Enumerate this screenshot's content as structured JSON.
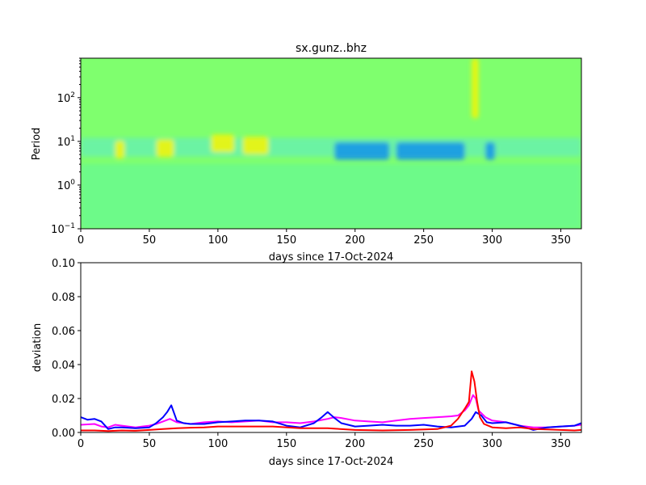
{
  "title": "sx.gunz..bhz",
  "colors": {
    "field_base": "#7fff6e",
    "band_yellow": "#f8f500",
    "band_cyan": "#1ad8ff",
    "band_blue": "#0a8cf0",
    "lower_band": "#5ef5a0"
  },
  "chart_data": [
    {
      "type": "heatmap",
      "title": "sx.gunz..bhz",
      "xlabel": "days since 17-Oct-2024",
      "ylabel": "Period",
      "xlim": [
        0,
        365
      ],
      "ylim": [
        0.1,
        800
      ],
      "yscale": "log",
      "x_ticks": [
        0,
        50,
        100,
        150,
        200,
        250,
        300,
        350
      ],
      "y_ticks": [
        {
          "value": 0.1,
          "base": "10",
          "exp": "−1"
        },
        {
          "value": 1,
          "base": "10",
          "exp": "0"
        },
        {
          "value": 10,
          "base": "10",
          "exp": "1"
        },
        {
          "value": 100,
          "base": "10",
          "exp": "2"
        }
      ],
      "features": [
        {
          "kind": "positive",
          "x_start": 25,
          "x_end": 32,
          "period": 6.5
        },
        {
          "kind": "positive",
          "x_start": 55,
          "x_end": 68,
          "period": 7
        },
        {
          "kind": "positive",
          "x_start": 95,
          "x_end": 112,
          "period": 9
        },
        {
          "kind": "positive",
          "x_start": 118,
          "x_end": 137,
          "period": 8
        },
        {
          "kind": "negative",
          "x_start": 185,
          "x_end": 225,
          "period": 6
        },
        {
          "kind": "negative",
          "x_start": 230,
          "x_end": 280,
          "period": 6
        },
        {
          "kind": "negative",
          "x_start": 295,
          "x_end": 302,
          "period": 6
        },
        {
          "kind": "positive",
          "x_start": 285,
          "x_end": 290,
          "period": 200
        }
      ]
    },
    {
      "type": "line",
      "xlabel": "days since 17-Oct-2024",
      "ylabel": "deviation",
      "xlim": [
        0,
        365
      ],
      "ylim": [
        0,
        0.1
      ],
      "x_ticks": [
        0,
        50,
        100,
        150,
        200,
        250,
        300,
        350
      ],
      "y_ticks": [
        "0.00",
        "0.02",
        "0.04",
        "0.06",
        "0.08",
        "0.10"
      ],
      "series": [
        {
          "color": "#ff00ff",
          "x": [
            0,
            10,
            15,
            20,
            25,
            30,
            40,
            45,
            50,
            55,
            60,
            65,
            70,
            80,
            90,
            100,
            110,
            120,
            130,
            140,
            150,
            160,
            170,
            180,
            185,
            190,
            200,
            210,
            220,
            230,
            240,
            250,
            260,
            270,
            275,
            280,
            283,
            286,
            288,
            290,
            295,
            300,
            310,
            320,
            330,
            340,
            350,
            360,
            365
          ],
          "y": [
            0.0045,
            0.005,
            0.0035,
            0.003,
            0.0045,
            0.004,
            0.003,
            0.0035,
            0.004,
            0.005,
            0.0065,
            0.008,
            0.006,
            0.005,
            0.006,
            0.0065,
            0.006,
            0.0065,
            0.007,
            0.006,
            0.006,
            0.0055,
            0.0065,
            0.008,
            0.009,
            0.0085,
            0.007,
            0.0065,
            0.006,
            0.007,
            0.008,
            0.0085,
            0.009,
            0.0095,
            0.01,
            0.013,
            0.016,
            0.022,
            0.02,
            0.013,
            0.009,
            0.007,
            0.006,
            0.004,
            0.003,
            0.003,
            0.0035,
            0.004,
            0.0045
          ]
        },
        {
          "color": "#0000ff",
          "x": [
            0,
            5,
            10,
            15,
            20,
            25,
            30,
            40,
            50,
            55,
            60,
            63,
            66,
            70,
            75,
            80,
            90,
            100,
            110,
            120,
            130,
            140,
            150,
            160,
            170,
            175,
            180,
            185,
            190,
            200,
            210,
            220,
            230,
            240,
            250,
            260,
            270,
            280,
            285,
            288,
            292,
            296,
            300,
            310,
            320,
            330,
            340,
            350,
            360,
            365
          ],
          "y": [
            0.009,
            0.0075,
            0.008,
            0.0065,
            0.002,
            0.003,
            0.003,
            0.0025,
            0.003,
            0.0055,
            0.009,
            0.012,
            0.016,
            0.007,
            0.0055,
            0.005,
            0.005,
            0.006,
            0.0065,
            0.007,
            0.007,
            0.0065,
            0.004,
            0.003,
            0.0055,
            0.0085,
            0.012,
            0.0085,
            0.0055,
            0.0035,
            0.004,
            0.0045,
            0.004,
            0.004,
            0.0045,
            0.0035,
            0.003,
            0.004,
            0.008,
            0.012,
            0.01,
            0.006,
            0.0055,
            0.006,
            0.004,
            0.0015,
            0.003,
            0.0035,
            0.004,
            0.0055
          ]
        },
        {
          "color": "#ff0000",
          "x": [
            0,
            10,
            20,
            30,
            40,
            50,
            60,
            70,
            80,
            90,
            100,
            120,
            140,
            160,
            180,
            200,
            220,
            240,
            260,
            270,
            275,
            280,
            283,
            285,
            287,
            289,
            291,
            294,
            300,
            310,
            320,
            330,
            340,
            350,
            360,
            365
          ],
          "y": [
            0.0012,
            0.0012,
            0.0008,
            0.0012,
            0.001,
            0.0015,
            0.002,
            0.0025,
            0.0028,
            0.003,
            0.0035,
            0.0035,
            0.0035,
            0.0025,
            0.0025,
            0.0015,
            0.0012,
            0.0015,
            0.002,
            0.004,
            0.008,
            0.014,
            0.018,
            0.036,
            0.03,
            0.018,
            0.009,
            0.005,
            0.003,
            0.0025,
            0.003,
            0.002,
            0.0018,
            0.0015,
            0.0012,
            0.0015
          ]
        }
      ]
    }
  ]
}
